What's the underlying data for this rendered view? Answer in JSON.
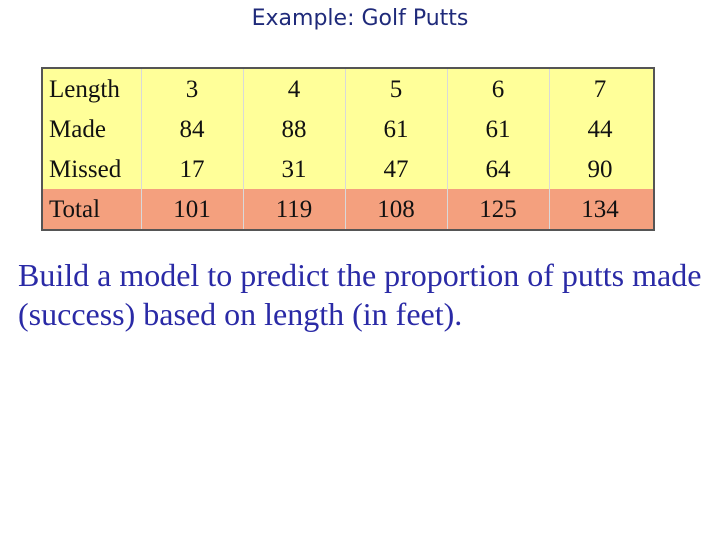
{
  "title": "Example: Golf Putts",
  "table": {
    "rows": [
      {
        "label": "Length",
        "values": [
          "3",
          "4",
          "5",
          "6",
          "7"
        ]
      },
      {
        "label": "Made",
        "values": [
          "84",
          "88",
          "61",
          "61",
          "44"
        ]
      },
      {
        "label": "Missed",
        "values": [
          "17",
          "31",
          "47",
          "64",
          "90"
        ]
      },
      {
        "label": "Total",
        "values": [
          "101",
          "119",
          "108",
          "125",
          "134"
        ]
      }
    ],
    "colors": {
      "header_fill": "#ffff99",
      "total_fill": "#f4a07e",
      "border": "#555555"
    }
  },
  "body_text": "Build a model to predict the proportion of putts made (success) based on length (in feet).",
  "colors": {
    "title": "#1f2a7a",
    "body_text": "#2a2aa6"
  }
}
